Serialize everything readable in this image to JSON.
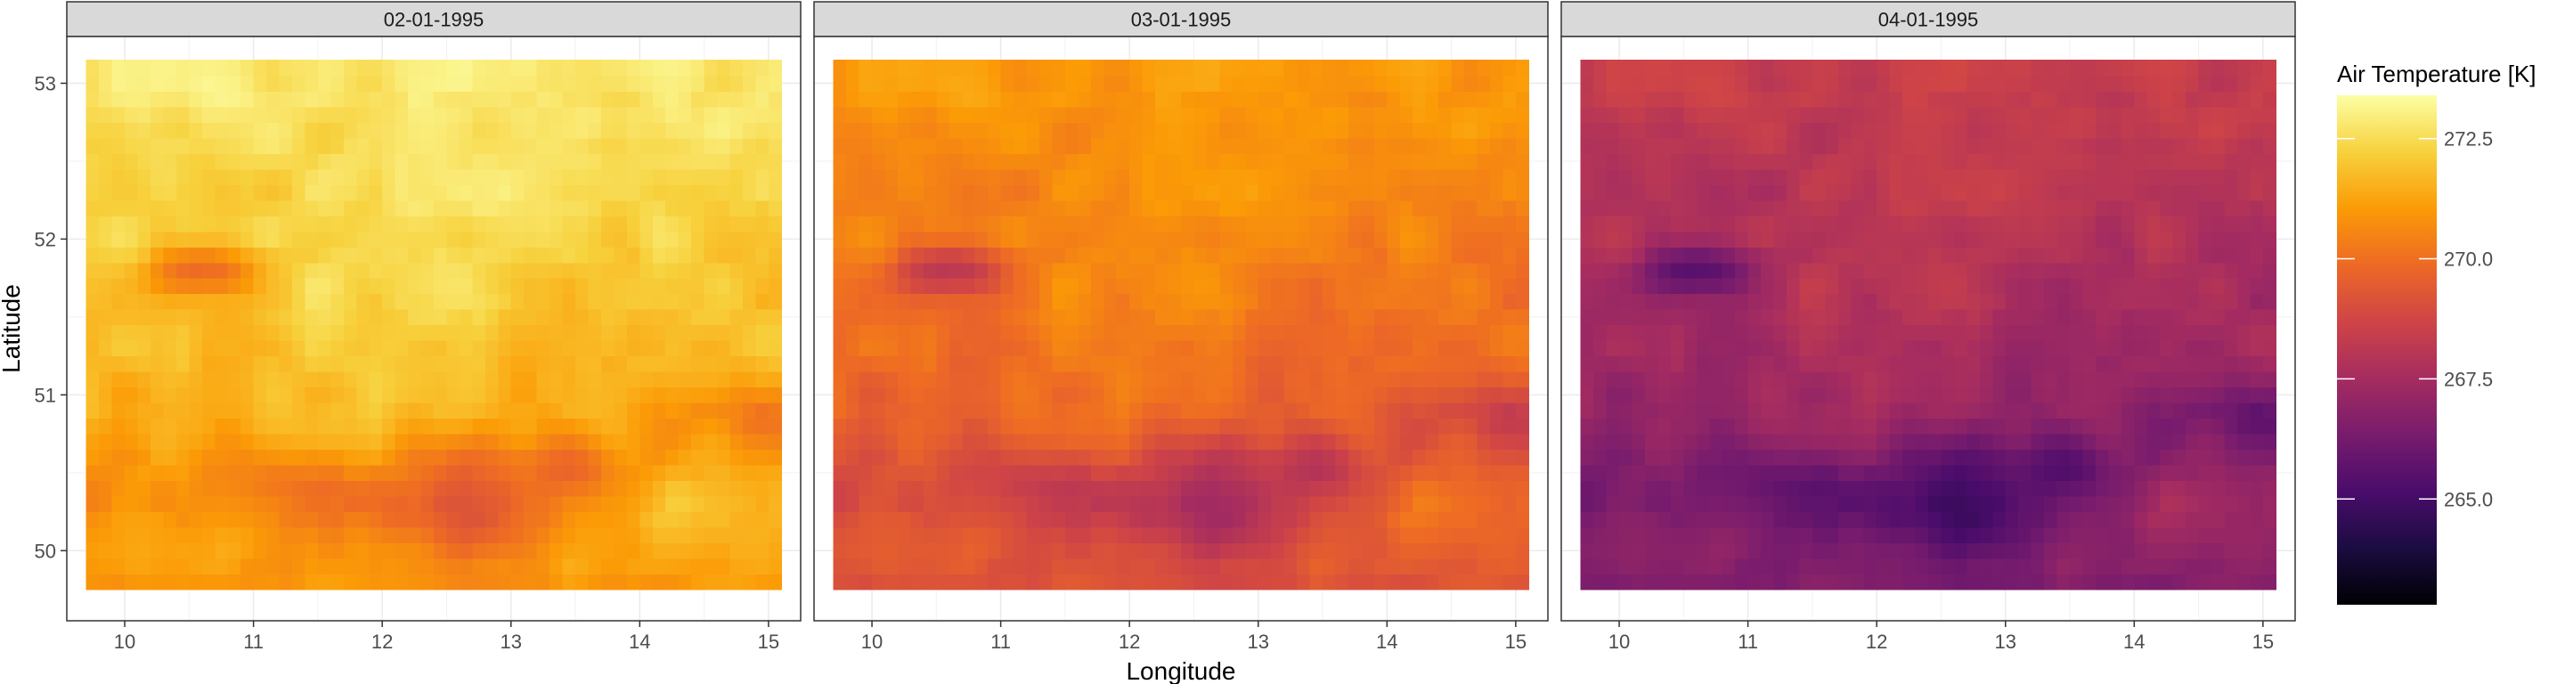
{
  "chart_data": {
    "type": "heatmap",
    "xlabel": "Longitude",
    "ylabel": "Latitude",
    "xlim": [
      9.55,
      15.25
    ],
    "ylim": [
      49.55,
      53.3
    ],
    "x_ticks": [
      10,
      11,
      12,
      13,
      14,
      15
    ],
    "x_tick_labels": [
      "10",
      "11",
      "12",
      "13",
      "14",
      "15"
    ],
    "y_ticks": [
      50,
      51,
      52,
      53
    ],
    "y_tick_labels": [
      "50",
      "51",
      "52",
      "53"
    ],
    "grid_extent": {
      "lon": [
        9.7,
        15.1
      ],
      "lat": [
        49.75,
        53.15
      ]
    },
    "grid_size": {
      "nx": 54,
      "ny": 34
    },
    "panels": [
      {
        "title": "02-01-1995",
        "offset": 3.0
      },
      {
        "title": "03-01-1995",
        "offset": 1.2
      },
      {
        "title": "04-01-1995",
        "offset": -1.4
      }
    ],
    "legend": {
      "title": "Air Temperature [K]",
      "range": [
        262.8,
        273.4
      ],
      "ticks": [
        265.0,
        267.5,
        270.0,
        272.5
      ],
      "tick_labels": [
        "265.0",
        "267.5",
        "270.0",
        "272.5"
      ],
      "placement": "right"
    },
    "colormap": [
      "#000004",
      "#1b0c41",
      "#4a0c6b",
      "#781c6d",
      "#a52c60",
      "#cf4446",
      "#ed6925",
      "#fb9b06",
      "#f7d13d",
      "#fcffa4"
    ],
    "grid": true
  }
}
